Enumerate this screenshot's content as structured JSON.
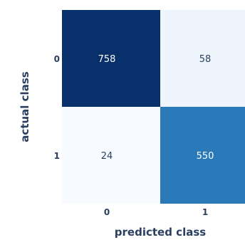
{
  "chart_data": {
    "type": "heatmap",
    "title": "",
    "xlabel": "predicted class",
    "ylabel": "actual class",
    "x_categories": [
      "0",
      "1"
    ],
    "y_categories": [
      "0",
      "1"
    ],
    "values": [
      [
        758,
        58
      ],
      [
        24,
        550
      ]
    ],
    "colorscale": [
      "#f7fbff",
      "#deebf7",
      "#c6dbef",
      "#9ecae1",
      "#6baed6",
      "#4292c6",
      "#2171b5",
      "#08519c",
      "#08306b"
    ],
    "colorbar": false
  }
}
